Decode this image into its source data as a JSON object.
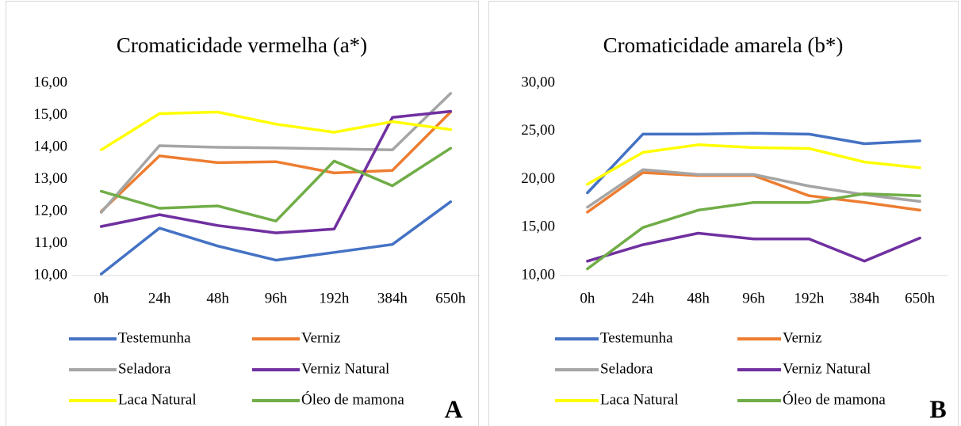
{
  "chart_data": [
    {
      "type": "line",
      "title": "Cromaticidade vermelha (a*)",
      "annotation": "A",
      "categories": [
        "0h",
        "24h",
        "48h",
        "96h",
        "192h",
        "384h",
        "650h"
      ],
      "ylim": [
        10,
        16
      ],
      "yticks": [
        {
          "value": 10,
          "label": "10,00"
        },
        {
          "value": 11,
          "label": "11,00"
        },
        {
          "value": 12,
          "label": "12,00"
        },
        {
          "value": 13,
          "label": "13,00"
        },
        {
          "value": 14,
          "label": "14,00"
        },
        {
          "value": 15,
          "label": "15,00"
        },
        {
          "value": 16,
          "label": "16,00"
        }
      ],
      "grid": false,
      "legend": "bottom",
      "series": [
        {
          "name": "Testemunha",
          "color": "#4472c4",
          "values": [
            10.05,
            11.48,
            10.92,
            10.48,
            10.72,
            10.97,
            12.3
          ]
        },
        {
          "name": "Verniz",
          "color": "#ed7d31",
          "values": [
            12.0,
            13.73,
            13.52,
            13.55,
            13.2,
            13.28,
            15.1
          ]
        },
        {
          "name": "Seladora",
          "color": "#a5a5a5",
          "values": [
            11.97,
            14.05,
            14.0,
            13.98,
            13.95,
            13.92,
            15.68
          ]
        },
        {
          "name": "Verniz Natural",
          "color": "#7030a0",
          "values": [
            11.53,
            11.9,
            11.56,
            11.33,
            11.45,
            14.93,
            15.12
          ]
        },
        {
          "name": "Laca Natural",
          "color": "#ffff00",
          "values": [
            13.92,
            15.05,
            15.1,
            14.72,
            14.47,
            14.8,
            14.55
          ]
        },
        {
          "name": "Óleo de mamona",
          "color": "#70ad47",
          "values": [
            12.63,
            12.1,
            12.17,
            11.7,
            13.57,
            12.8,
            13.97
          ]
        }
      ]
    },
    {
      "type": "line",
      "title": "Cromaticidade amarela (b*)",
      "annotation": "B",
      "categories": [
        "0h",
        "24h",
        "48h",
        "96h",
        "192h",
        "384h",
        "650h"
      ],
      "ylim": [
        10,
        30
      ],
      "yticks": [
        {
          "value": 10,
          "label": "10,00"
        },
        {
          "value": 15,
          "label": "15,00"
        },
        {
          "value": 20,
          "label": "20,00"
        },
        {
          "value": 25,
          "label": "25,00"
        },
        {
          "value": 30,
          "label": "30,00"
        }
      ],
      "grid": false,
      "legend": "bottom",
      "series": [
        {
          "name": "Testemunha",
          "color": "#4472c4",
          "values": [
            18.6,
            24.7,
            24.7,
            24.8,
            24.7,
            23.7,
            24.0
          ]
        },
        {
          "name": "Verniz",
          "color": "#ed7d31",
          "values": [
            16.6,
            20.7,
            20.4,
            20.4,
            18.3,
            17.6,
            16.8
          ]
        },
        {
          "name": "Seladora",
          "color": "#a5a5a5",
          "values": [
            17.1,
            21.0,
            20.5,
            20.5,
            19.3,
            18.4,
            17.7
          ]
        },
        {
          "name": "Verniz Natural",
          "color": "#7030a0",
          "values": [
            11.5,
            13.2,
            14.4,
            13.8,
            13.8,
            11.5,
            13.9
          ]
        },
        {
          "name": "Laca Natural",
          "color": "#ffff00",
          "values": [
            19.5,
            22.8,
            23.6,
            23.3,
            23.2,
            21.8,
            21.2
          ]
        },
        {
          "name": "Óleo de mamona",
          "color": "#70ad47",
          "values": [
            10.7,
            15.0,
            16.8,
            17.6,
            17.6,
            18.5,
            18.3
          ]
        }
      ]
    }
  ]
}
